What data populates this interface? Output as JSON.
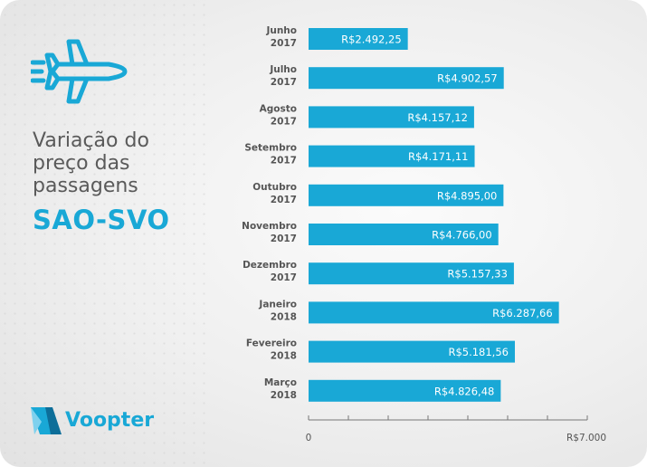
{
  "colors": {
    "accent": "#19a8d6",
    "title": "#5a5a5a",
    "axis": "#777777"
  },
  "sidebar": {
    "icon": "airplane-icon",
    "title_lines": [
      "Variação do",
      "preço das",
      "passagens"
    ],
    "route": "SAO-SVO",
    "brand": {
      "icon": "voopter-logo-icon",
      "name": "Voopter"
    }
  },
  "chart_data": {
    "type": "bar",
    "orientation": "horizontal",
    "categories": [
      [
        "Junho",
        "2017"
      ],
      [
        "Julho",
        "2017"
      ],
      [
        "Agosto",
        "2017"
      ],
      [
        "Setembro",
        "2017"
      ],
      [
        "Outubro",
        "2017"
      ],
      [
        "Novembro",
        "2017"
      ],
      [
        "Dezembro",
        "2017"
      ],
      [
        "Janeiro",
        "2018"
      ],
      [
        "Fevereiro",
        "2018"
      ],
      [
        "Março",
        "2018"
      ]
    ],
    "values": [
      2492.25,
      4902.57,
      4157.12,
      4171.11,
      4895.0,
      4766.0,
      5157.33,
      6287.66,
      5181.56,
      4826.48
    ],
    "value_labels": [
      "R$2.492,25",
      "R$4.902,57",
      "R$4.157,12",
      "R$4.171,11",
      "R$4.895,00",
      "R$4.766,00",
      "R$5.157,33",
      "R$6.287,66",
      "R$5.181,56",
      "R$4.826,48"
    ],
    "xlim": [
      0,
      7000
    ],
    "x_tick_count": 7,
    "x_tick_labels": [
      "0",
      "R$7.000"
    ],
    "grid": false,
    "legend": "none"
  }
}
